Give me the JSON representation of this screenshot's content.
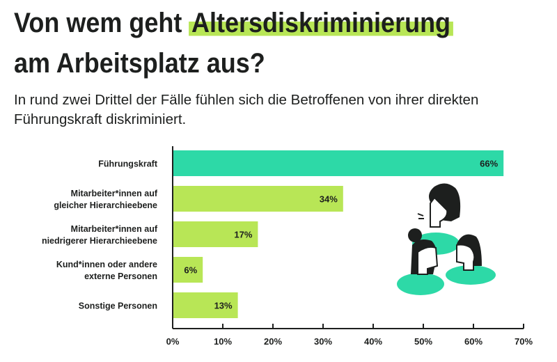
{
  "header": {
    "title_before": "Von wem geht ",
    "title_highlight": "Altersdiskriminierung",
    "title_after": "am Arbeitsplatz aus?",
    "subtitle": "In rund zwei Drittel der Fälle fühlen sich die Betroffenen von ihrer direkten Führungskraft diskriminiert."
  },
  "colors": {
    "highlight": "#b8e656",
    "top_bar": "#2dd9a7",
    "bar": "#b8e656",
    "text": "#1d1f1e"
  },
  "illustration": "three-women-talking-icon",
  "chart_data": {
    "type": "bar",
    "orientation": "horizontal",
    "categories": [
      [
        "Führungskraft"
      ],
      [
        "Mitarbeiter*innen auf",
        "gleicher Hierarchieebene"
      ],
      [
        "Mitarbeiter*innen auf",
        "niedrigerer Hierarchieebene"
      ],
      [
        "Kund*innen oder andere",
        "externe Personen"
      ],
      [
        "Sonstige Personen"
      ]
    ],
    "values": [
      66,
      34,
      17,
      6,
      13
    ],
    "value_labels": [
      "66%",
      "34%",
      "17%",
      "6%",
      "13%"
    ],
    "xlim": [
      0,
      70
    ],
    "xticks": [
      0,
      10,
      20,
      30,
      40,
      50,
      60,
      70
    ],
    "xtick_labels": [
      "0%",
      "10%",
      "20%",
      "30%",
      "40%",
      "50%",
      "60%",
      "70%"
    ],
    "grid": false,
    "highlighted_index": 0
  }
}
